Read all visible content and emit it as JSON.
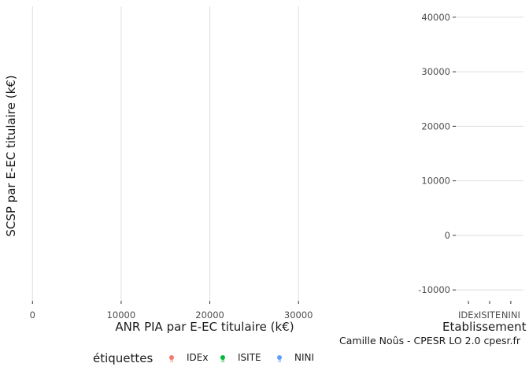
{
  "chart_data": [
    {
      "type": "scatter",
      "panel": "main",
      "xlabel": "ANR PIA par E-EC titulaire (k€)",
      "ylabel": "SCSP par E-EC titulaire (k€)",
      "x_ticks": [
        0,
        10000,
        20000,
        30000
      ],
      "x_tick_labels": [
        "0",
        "10000",
        "20000",
        "30000"
      ],
      "xlim": [
        -1000,
        33000
      ],
      "grid": true,
      "series": []
    },
    {
      "type": "scatter",
      "panel": "side",
      "xlabel": "Etablissement",
      "categories": [
        "IDEx",
        "ISITE",
        "NINI"
      ],
      "category_labels": [
        "IDEx",
        "ISITE",
        "NINI"
      ],
      "y_ticks": [
        40000,
        30000,
        20000,
        10000,
        0,
        -10000
      ],
      "y_tick_labels": [
        "40000",
        "30000",
        "20000",
        "10000",
        "0",
        "-10000"
      ],
      "ylim": [
        -12000,
        42000
      ],
      "grid": true,
      "series": []
    }
  ],
  "legend": {
    "title": "étiquettes",
    "placement": "bottom",
    "items": [
      {
        "label": "IDEx",
        "color": "#F8766D"
      },
      {
        "label": "ISITE",
        "color": "#00BA38"
      },
      {
        "label": "NINI",
        "color": "#619CFF"
      }
    ]
  },
  "caption": "Camille Noûs - CPESR LO 2.0 cpesr.fr"
}
